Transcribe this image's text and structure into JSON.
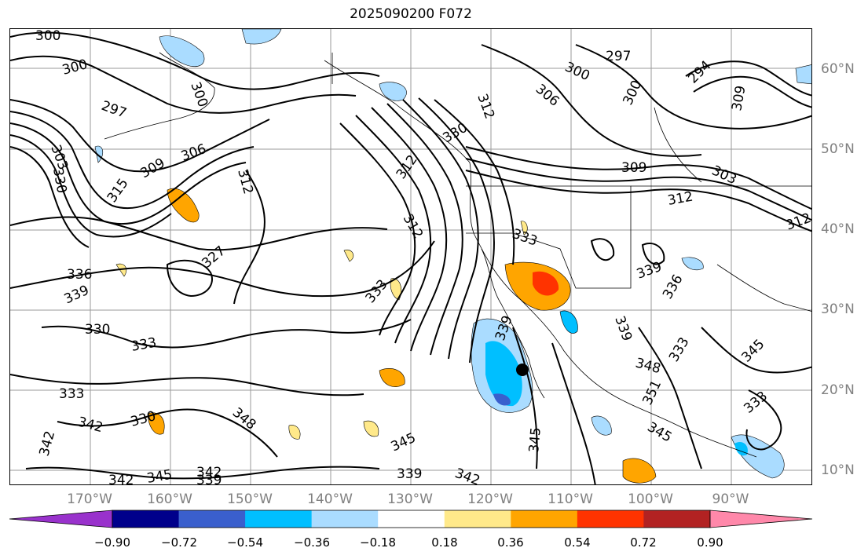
{
  "title": "2025090200 F072",
  "map": {
    "lat_labels": [
      "60°N",
      "50°N",
      "40°N",
      "30°N",
      "20°N",
      "10°N"
    ],
    "lon_labels": [
      "170°W",
      "160°W",
      "150°W",
      "140°W",
      "130°W",
      "120°W",
      "110°W",
      "100°W",
      "90°W"
    ],
    "contour_labels": [
      "300",
      "297",
      "303",
      "306",
      "309",
      "312",
      "315",
      "330",
      "333",
      "336",
      "339",
      "342",
      "345",
      "348",
      "351",
      "327",
      "294"
    ],
    "fill_colors": {
      "neg_light": "#aadcff",
      "neg_mid": "#00bfff",
      "neg_strong": "#3a5fcd",
      "pos_light": "#ffe98a",
      "pos_mid": "#ffa500",
      "pos_strong": "#ff3300"
    }
  },
  "colorbar": {
    "tick_labels": [
      "−0.90",
      "−0.72",
      "−0.54",
      "−0.36",
      "−0.18",
      "0.18",
      "0.36",
      "0.54",
      "0.72",
      "0.90"
    ],
    "colors": [
      "#9932cc",
      "#00008b",
      "#3a5fcd",
      "#00bfff",
      "#aadcff",
      "#ffffff",
      "#ffe98a",
      "#ffa500",
      "#ff3300",
      "#b22222",
      "#ff88aa"
    ]
  }
}
